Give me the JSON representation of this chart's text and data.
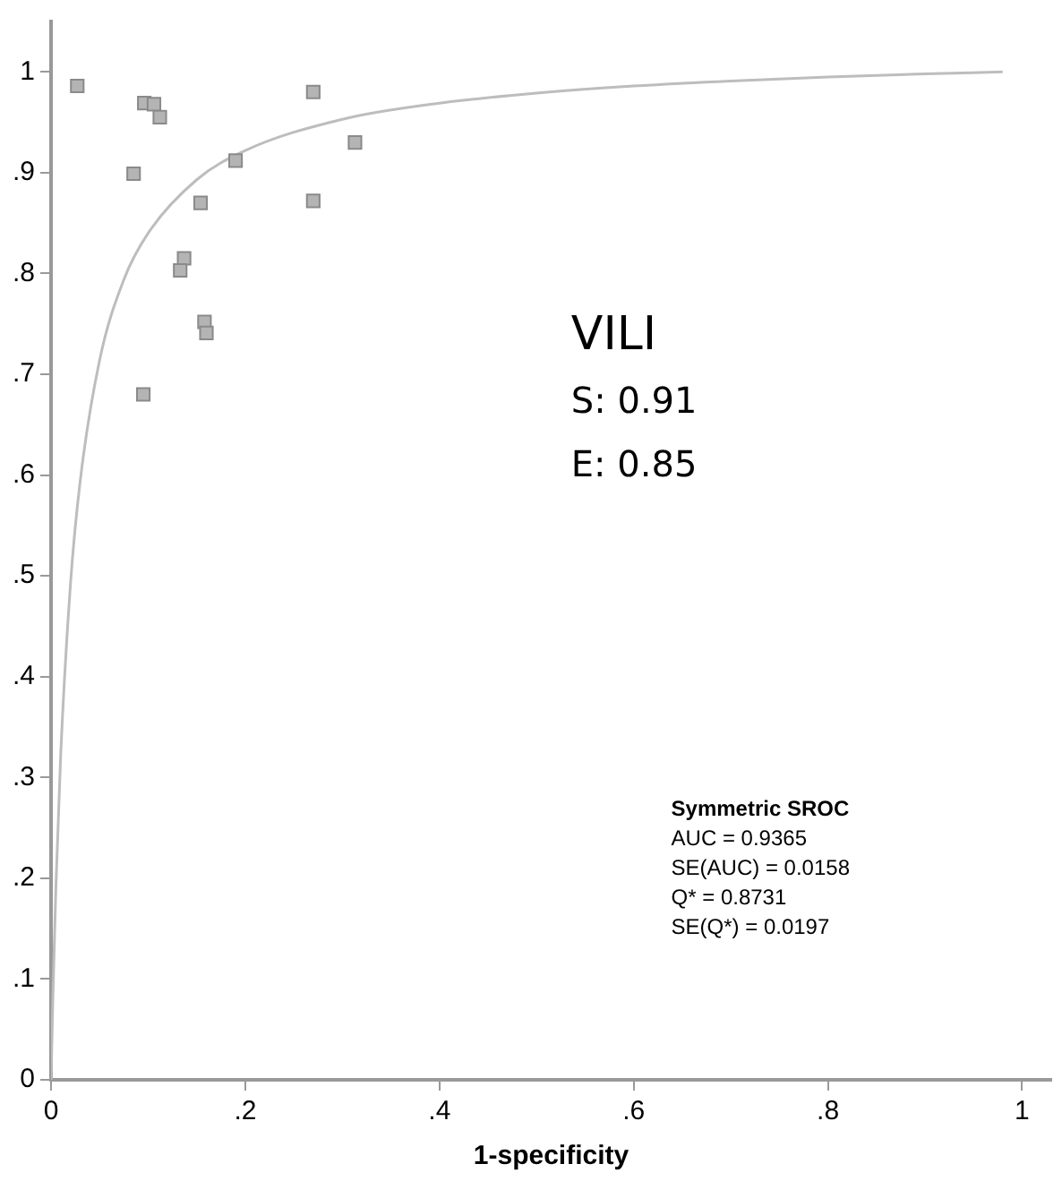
{
  "chart_data": {
    "type": "scatter",
    "xlabel": "1-specificity",
    "xlim": [
      0,
      1.03
    ],
    "ylim": [
      0,
      1.05
    ],
    "xticks": [
      0,
      {
        "value": 0.2,
        "label": ".2"
      },
      {
        "value": 0.4,
        "label": ".4"
      },
      {
        "value": 0.6,
        "label": ".6"
      },
      {
        "value": 0.8,
        "label": ".8"
      },
      1
    ],
    "yticks": [
      0,
      {
        "value": 0.1,
        "label": ".1"
      },
      {
        "value": 0.2,
        "label": ".2"
      },
      {
        "value": 0.3,
        "label": ".3"
      },
      {
        "value": 0.4,
        "label": ".4"
      },
      {
        "value": 0.5,
        "label": ".5"
      },
      {
        "value": 0.6,
        "label": ".6"
      },
      {
        "value": 0.7,
        "label": ".7"
      },
      {
        "value": 0.8,
        "label": ".8"
      },
      {
        "value": 0.9,
        "label": ".9"
      },
      1
    ],
    "grid": false,
    "legend": false,
    "marker": "square",
    "series": [
      {
        "color": "#b4b4b4",
        "x": [
          0.027,
          0.096,
          0.106,
          0.112,
          0.085,
          0.19,
          0.154,
          0.27,
          0.313,
          0.27,
          0.137,
          0.133,
          0.158,
          0.16,
          0.095
        ],
        "values": [
          0.986,
          0.969,
          0.968,
          0.955,
          0.899,
          0.912,
          0.87,
          0.98,
          0.93,
          0.872,
          0.815,
          0.803,
          0.752,
          0.741,
          0.68
        ]
      },
      {
        "type": "line",
        "color": "#bdbdbd",
        "marker": "none",
        "x": [
          0,
          0.002,
          0.005,
          0.01,
          0.02,
          0.03,
          0.05,
          0.075,
          0.1,
          0.15,
          0.2,
          0.3,
          0.4,
          0.5,
          0.6,
          0.7,
          0.8,
          0.9,
          0.98
        ],
        "values": [
          0,
          0.087,
          0.192,
          0.324,
          0.492,
          0.594,
          0.714,
          0.794,
          0.84,
          0.893,
          0.922,
          0.953,
          0.969,
          0.979,
          0.986,
          0.991,
          0.995,
          0.998,
          1.0
        ]
      }
    ],
    "annotations": [
      "VILI",
      "S: 0.91",
      "E: 0.85",
      "Symmetric SROC",
      "AUC = 0.9365",
      "SE(AUC) = 0.0158",
      "Q* = 0.8731",
      "SE(Q*) = 0.0197"
    ]
  }
}
